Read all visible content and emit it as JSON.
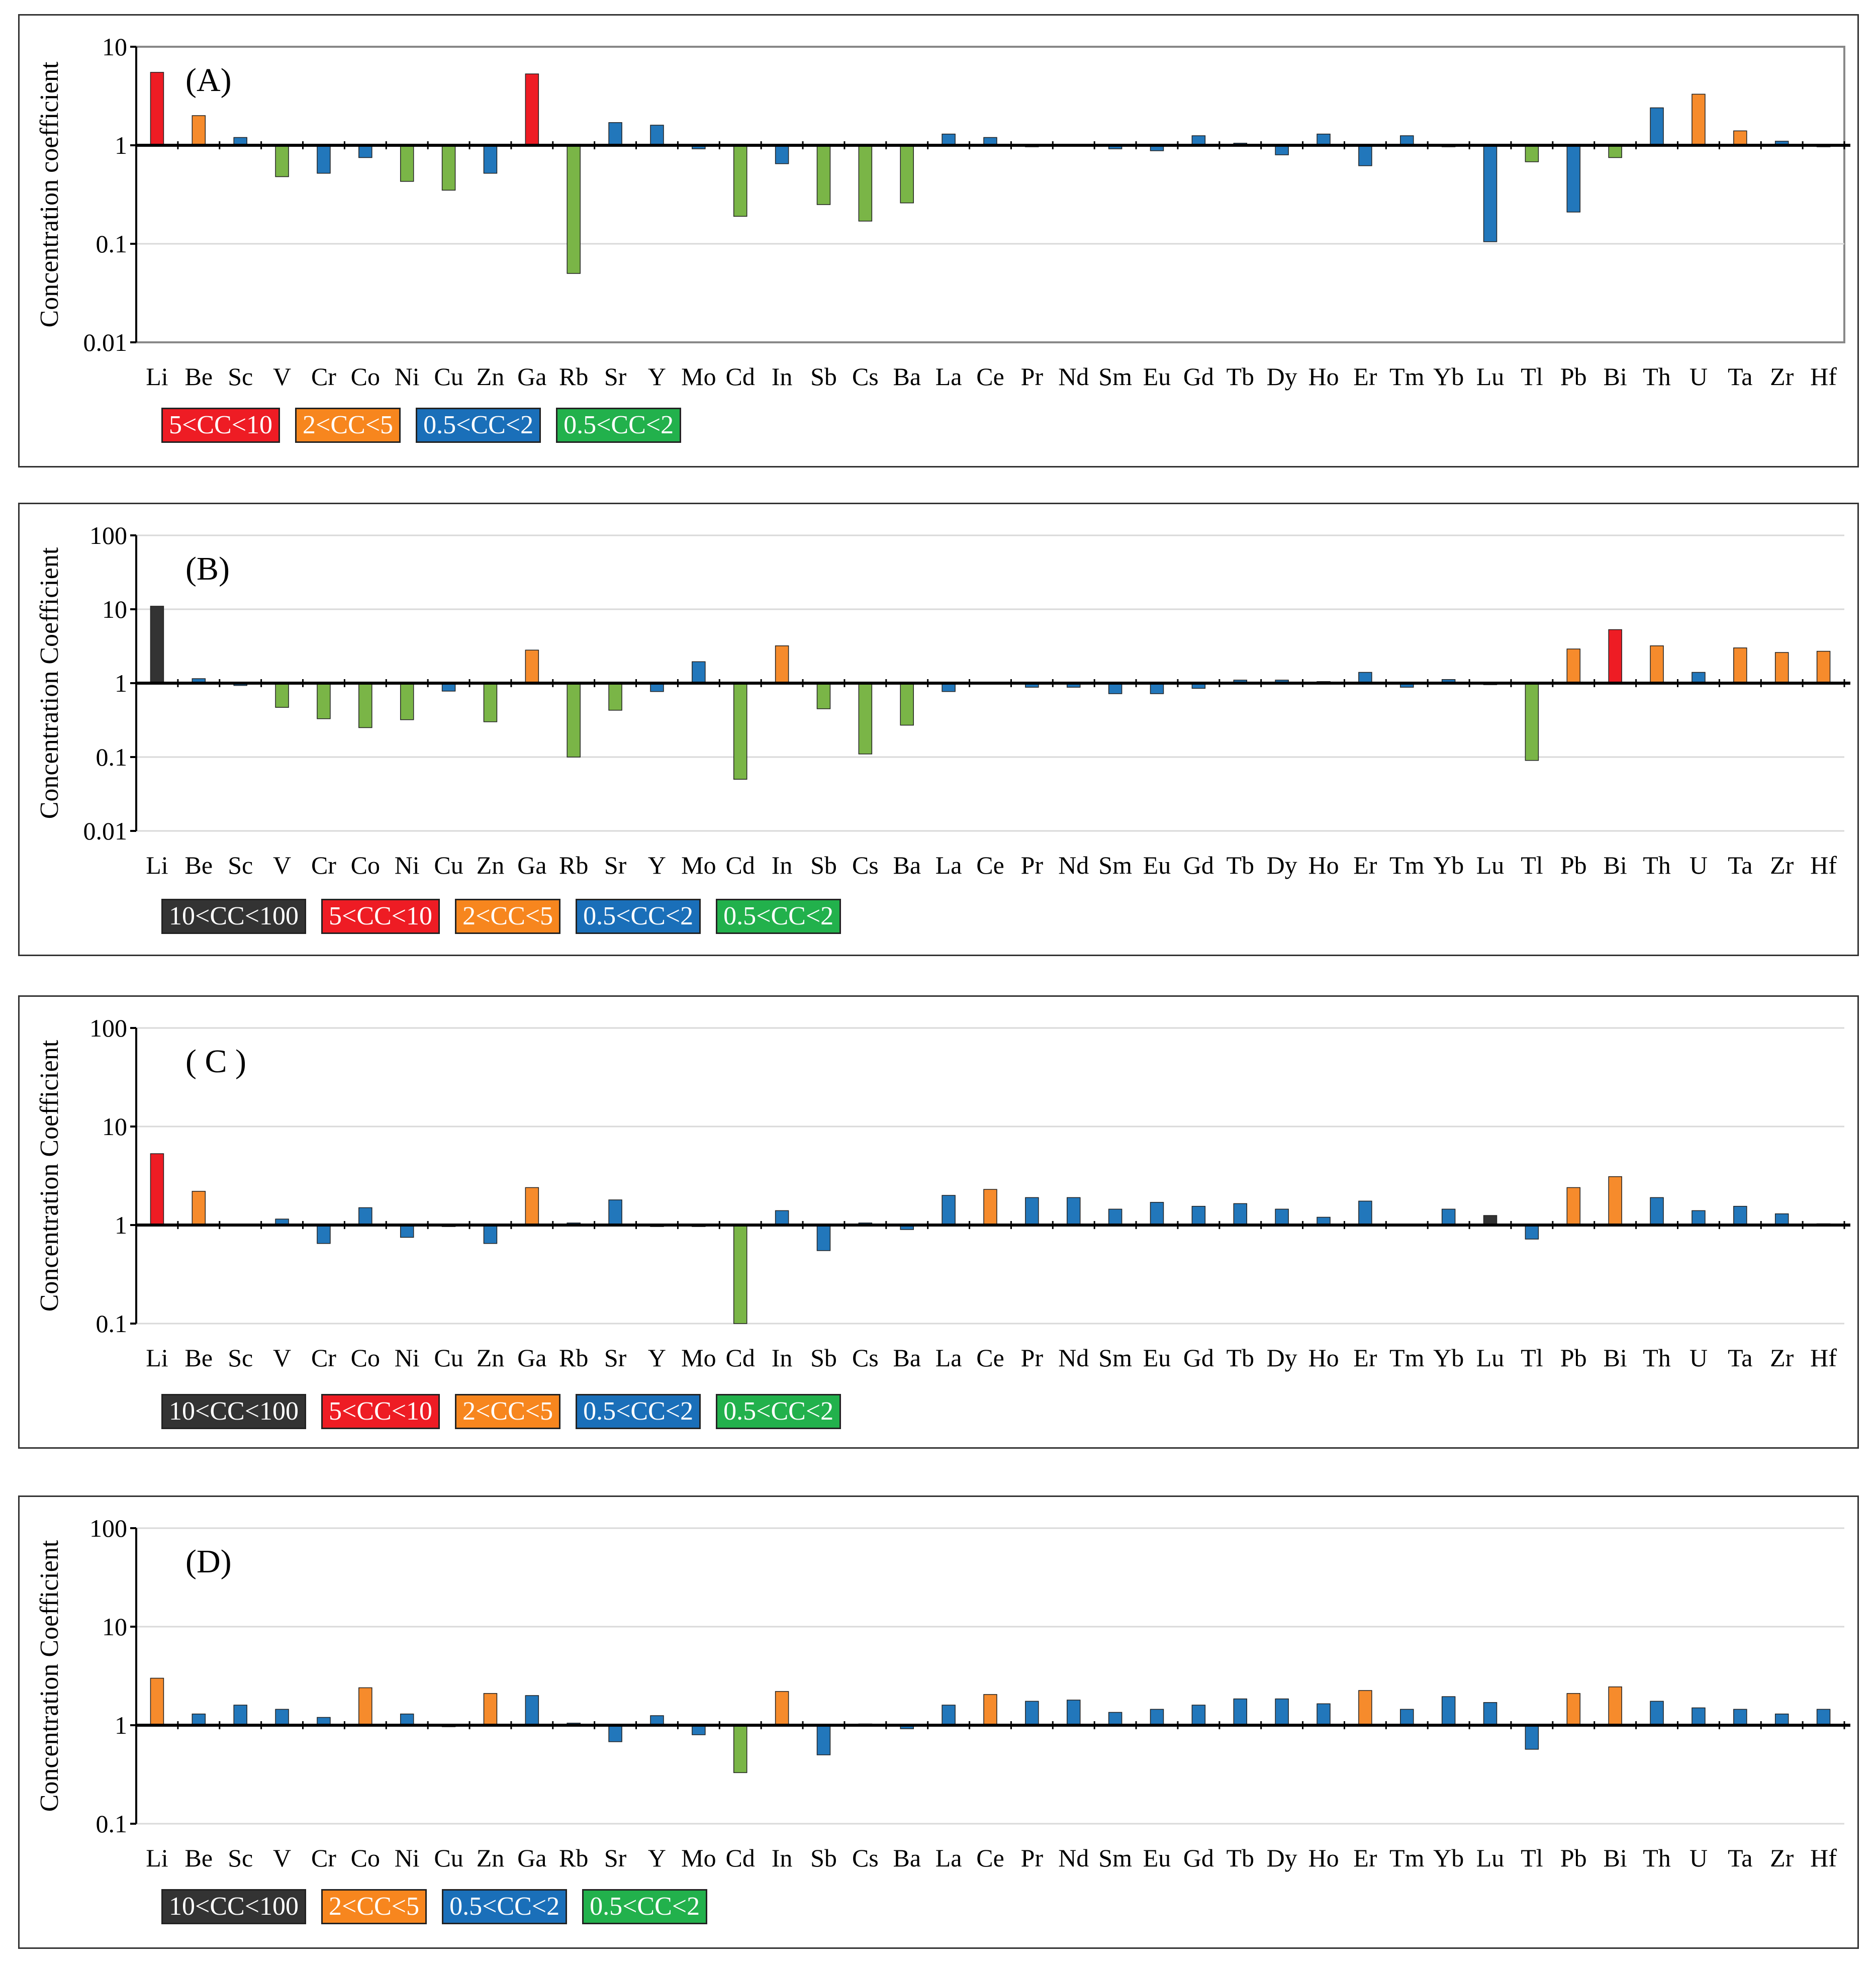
{
  "colors": {
    "dark": "#333333",
    "red": "#ee1c24",
    "orange": "#f68b2c",
    "blue": "#2277bb",
    "green": "#7ab547",
    "legend_green": "#22b14c",
    "legend_blue": "#1a6fb9",
    "legend_orange": "#f7861e"
  },
  "elements": [
    "Li",
    "Be",
    "Sc",
    "V",
    "Cr",
    "Co",
    "Ni",
    "Cu",
    "Zn",
    "Ga",
    "Rb",
    "Sr",
    "Y",
    "Mo",
    "Cd",
    "In",
    "Sb",
    "Cs",
    "Ba",
    "La",
    "Ce",
    "Pr",
    "Nd",
    "Sm",
    "Eu",
    "Gd",
    "Tb",
    "Dy",
    "Ho",
    "Er",
    "Tm",
    "Yb",
    "Lu",
    "Tl",
    "Pb",
    "Bi",
    "Th",
    "U",
    "Ta",
    "Zr",
    "Hf"
  ],
  "chart_data": [
    {
      "type": "bar",
      "panel_label": "(A)",
      "ylabel": "Concentration coefficient",
      "yscale": "log",
      "ylim": [
        0.01,
        10
      ],
      "yticks": [
        "10",
        "1",
        "0.1",
        "0.01"
      ],
      "frame": true,
      "legend": [
        {
          "label": "5<CC<10",
          "color": "red"
        },
        {
          "label": "2<CC<5",
          "color": "legend_orange"
        },
        {
          "label": "0.5<CC<2",
          "color": "legend_blue"
        },
        {
          "label": "0.5<CC<2",
          "color": "legend_green"
        }
      ],
      "values": [
        5.5,
        2.0,
        1.2,
        0.48,
        0.52,
        0.75,
        0.43,
        0.35,
        0.52,
        5.3,
        0.05,
        1.7,
        1.6,
        0.92,
        0.19,
        0.65,
        0.25,
        0.17,
        0.26,
        1.3,
        1.2,
        0.97,
        1.02,
        0.92,
        0.88,
        1.25,
        1.05,
        0.8,
        1.3,
        0.62,
        1.25,
        0.98,
        0.105,
        0.68,
        0.21,
        0.75,
        2.4,
        3.3,
        1.4,
        1.1,
        1.0
      ],
      "bar_colors": [
        "red",
        "orange",
        "blue",
        "green",
        "blue",
        "blue",
        "green",
        "green",
        "blue",
        "red",
        "green",
        "blue",
        "blue",
        "blue",
        "green",
        "blue",
        "green",
        "green",
        "green",
        "blue",
        "blue",
        "blue",
        "blue",
        "blue",
        "blue",
        "blue",
        "blue",
        "blue",
        "blue",
        "blue",
        "blue",
        "blue",
        "blue",
        "green",
        "blue",
        "green",
        "blue",
        "orange",
        "orange",
        "blue",
        "blue"
      ]
    },
    {
      "type": "bar",
      "panel_label": "(B)",
      "ylabel": "Concentration Coefficient",
      "yscale": "log",
      "ylim": [
        0.01,
        100
      ],
      "yticks": [
        "100",
        "10",
        "1",
        "0.1",
        "0.01"
      ],
      "frame": false,
      "legend": [
        {
          "label": "10<CC<100",
          "color": "dark"
        },
        {
          "label": "5<CC<10",
          "color": "red"
        },
        {
          "label": "2<CC<5",
          "color": "legend_orange"
        },
        {
          "label": "0.5<CC<2",
          "color": "legend_blue"
        },
        {
          "label": "0.5<CC<2",
          "color": "legend_green"
        }
      ],
      "values": [
        11,
        1.15,
        0.93,
        0.47,
        0.33,
        0.25,
        0.32,
        0.78,
        0.3,
        2.8,
        0.1,
        0.43,
        0.77,
        1.95,
        0.05,
        3.2,
        0.45,
        0.11,
        0.27,
        0.77,
        1.02,
        0.88,
        0.88,
        0.72,
        0.72,
        0.85,
        1.1,
        1.1,
        1.05,
        1.4,
        0.88,
        1.12,
        1.0,
        0.09,
        2.9,
        5.3,
        3.2,
        1.4,
        3.0,
        2.6,
        2.7
      ],
      "bar_colors": [
        "dark",
        "blue",
        "blue",
        "green",
        "green",
        "green",
        "green",
        "blue",
        "green",
        "orange",
        "green",
        "green",
        "blue",
        "blue",
        "green",
        "orange",
        "green",
        "green",
        "green",
        "blue",
        "blue",
        "blue",
        "blue",
        "blue",
        "blue",
        "blue",
        "blue",
        "blue",
        "blue",
        "blue",
        "blue",
        "blue",
        "blue",
        "green",
        "orange",
        "red",
        "orange",
        "blue",
        "orange",
        "orange",
        "orange"
      ]
    },
    {
      "type": "bar",
      "panel_label": "( C )",
      "ylabel": "Concentration Coefficient",
      "yscale": "log",
      "ylim": [
        0.1,
        100
      ],
      "yticks": [
        "100",
        "10",
        "1",
        "0.1"
      ],
      "frame": false,
      "legend": [
        {
          "label": "10<CC<100",
          "color": "dark"
        },
        {
          "label": "5<CC<10",
          "color": "red"
        },
        {
          "label": "2<CC<5",
          "color": "legend_orange"
        },
        {
          "label": "0.5<CC<2",
          "color": "legend_blue"
        },
        {
          "label": "0.5<CC<2",
          "color": "legend_green"
        }
      ],
      "values": [
        5.3,
        2.2,
        1.02,
        1.15,
        0.65,
        1.5,
        0.75,
        1.0,
        0.65,
        2.4,
        1.05,
        1.8,
        1.0,
        0.97,
        0.1,
        1.4,
        0.55,
        1.05,
        0.9,
        2.0,
        2.3,
        1.9,
        1.9,
        1.45,
        1.7,
        1.55,
        1.65,
        1.45,
        1.2,
        1.75,
        1.02,
        1.45,
        1.25,
        0.72,
        2.4,
        3.1,
        1.9,
        1.4,
        1.55,
        1.3,
        1.03
      ],
      "bar_colors": [
        "red",
        "orange",
        "blue",
        "blue",
        "blue",
        "blue",
        "blue",
        "blue",
        "blue",
        "orange",
        "blue",
        "blue",
        "blue",
        "blue",
        "green",
        "blue",
        "blue",
        "blue",
        "blue",
        "blue",
        "orange",
        "blue",
        "blue",
        "blue",
        "blue",
        "blue",
        "blue",
        "blue",
        "blue",
        "blue",
        "blue",
        "blue",
        "dark",
        "blue",
        "orange",
        "orange",
        "blue",
        "blue",
        "blue",
        "blue",
        "blue"
      ]
    },
    {
      "type": "bar",
      "panel_label": "(D)",
      "ylabel": "Concentration Coefficient",
      "yscale": "log",
      "ylim": [
        0.1,
        100
      ],
      "yticks": [
        "100",
        "10",
        "1",
        "0.1"
      ],
      "frame": false,
      "legend": [
        {
          "label": "10<CC<100",
          "color": "dark"
        },
        {
          "label": "2<CC<5",
          "color": "legend_orange"
        },
        {
          "label": "0.5<CC<2",
          "color": "legend_blue"
        },
        {
          "label": "0.5<CC<2",
          "color": "legend_green"
        }
      ],
      "values": [
        3.0,
        1.3,
        1.6,
        1.45,
        1.2,
        2.4,
        1.3,
        1.0,
        2.1,
        2.0,
        1.05,
        0.68,
        1.25,
        0.8,
        0.33,
        2.2,
        0.5,
        1.03,
        0.92,
        1.6,
        2.05,
        1.75,
        1.8,
        1.35,
        1.45,
        1.6,
        1.85,
        1.85,
        1.65,
        2.25,
        1.45,
        1.95,
        1.7,
        0.57,
        2.1,
        2.45,
        1.75,
        1.5,
        1.45,
        1.3,
        1.45
      ],
      "bar_colors": [
        "orange",
        "blue",
        "blue",
        "blue",
        "blue",
        "orange",
        "blue",
        "blue",
        "orange",
        "blue",
        "blue",
        "blue",
        "blue",
        "blue",
        "green",
        "orange",
        "blue",
        "blue",
        "blue",
        "blue",
        "orange",
        "blue",
        "blue",
        "blue",
        "blue",
        "blue",
        "blue",
        "blue",
        "blue",
        "orange",
        "blue",
        "blue",
        "blue",
        "blue",
        "orange",
        "orange",
        "blue",
        "blue",
        "blue",
        "blue",
        "blue"
      ]
    }
  ]
}
